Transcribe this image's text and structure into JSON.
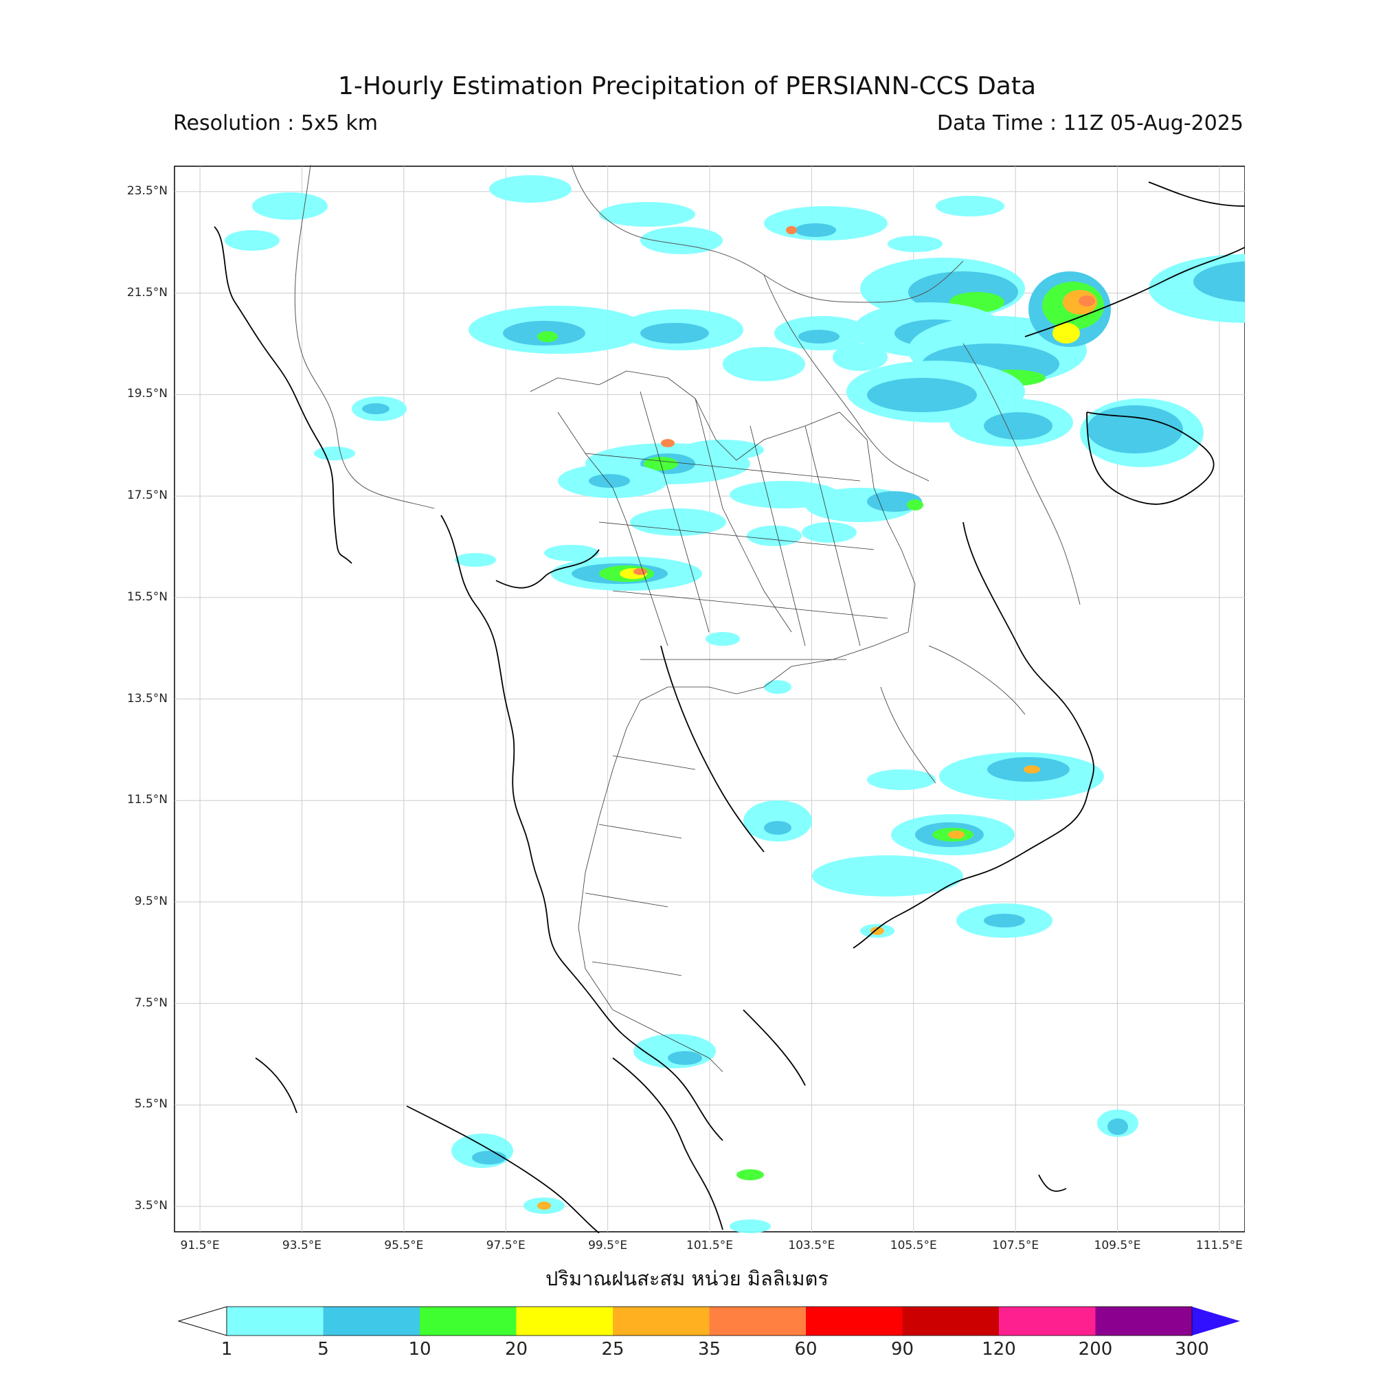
{
  "header": {
    "title": "1-Hourly Estimation Precipitation of PERSIANN-CCS Data",
    "resolution": "Resolution : 5x5 km",
    "data_time": "Data Time : 11Z 05-Aug-2025"
  },
  "map": {
    "lon_range": [
      91.0,
      112.0
    ],
    "lat_range": [
      3.0,
      24.0
    ],
    "lat_ticks": [
      "23.5°N",
      "21.5°N",
      "19.5°N",
      "17.5°N",
      "15.5°N",
      "13.5°N",
      "11.5°N",
      "9.5°N",
      "7.5°N",
      "5.5°N",
      "3.5°N"
    ],
    "lon_ticks": [
      "91.5°E",
      "93.5°E",
      "95.5°E",
      "97.5°E",
      "99.5°E",
      "101.5°E",
      "103.5°E",
      "105.5°E",
      "107.5°E",
      "109.5°E",
      "111.5°E"
    ],
    "grid": true,
    "xlabel": "ปริมาณฝนสะสม หน่วย มิลลิเมตร"
  },
  "colorbar": {
    "levels": [
      "1",
      "5",
      "10",
      "20",
      "25",
      "35",
      "60",
      "90",
      "120",
      "200",
      "300"
    ],
    "colors": [
      "#80ffff",
      "#40c8e8",
      "#40ff30",
      "#ffff00",
      "#ffb020",
      "#ff8040",
      "#ff0000",
      "#cc0000",
      "#ff2090",
      "#8c0090"
    ],
    "over_color": "#3010ff",
    "under_color": "#ffffff"
  }
}
